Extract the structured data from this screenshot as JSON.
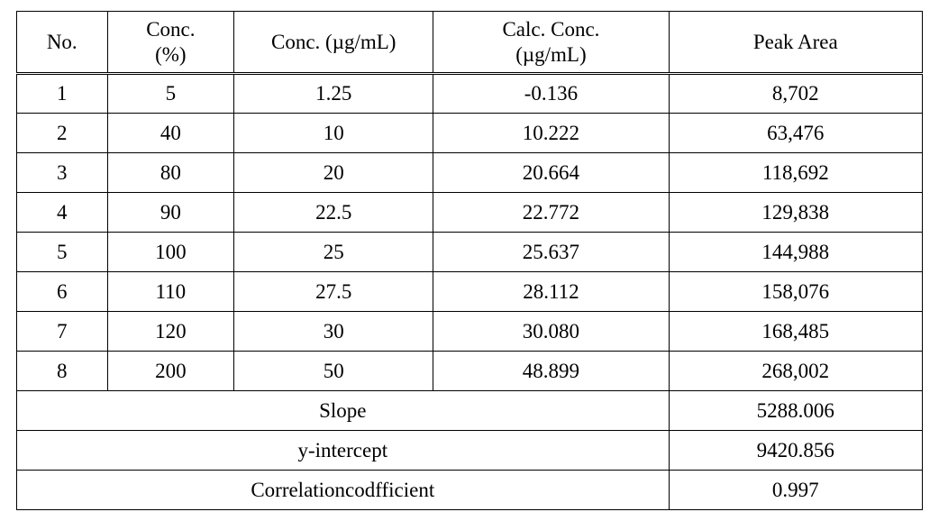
{
  "table": {
    "type": "table",
    "background_color": "#ffffff",
    "border_color": "#000000",
    "text_color": "#000000",
    "font_family": "Times New Roman, Batang, serif",
    "header_fontsize_pt": 17,
    "body_fontsize_pt": 17,
    "column_widths_pct": [
      10,
      14,
      22,
      26,
      28
    ],
    "columns": [
      "No.",
      "Conc.\n(%)",
      "Conc. (µg/mL)",
      "Calc. Conc.\n(µg/mL)",
      "Peak Area"
    ],
    "rows": [
      [
        "1",
        "5",
        "1.25",
        "-0.136",
        "8,702"
      ],
      [
        "2",
        "40",
        "10",
        "10.222",
        "63,476"
      ],
      [
        "3",
        "80",
        "20",
        "20.664",
        "118,692"
      ],
      [
        "4",
        "90",
        "22.5",
        "22.772",
        "129,838"
      ],
      [
        "5",
        "100",
        "25",
        "25.637",
        "144,988"
      ],
      [
        "6",
        "110",
        "27.5",
        "28.112",
        "158,076"
      ],
      [
        "7",
        "120",
        "30",
        "30.080",
        "168,485"
      ],
      [
        "8",
        "200",
        "50",
        "48.899",
        "268,002"
      ]
    ],
    "summary": [
      {
        "label": "Slope",
        "value": "5288.006"
      },
      {
        "label": "y-intercept",
        "value": "9420.856"
      },
      {
        "label": "Correlationcodfficient",
        "value": "0.997"
      }
    ]
  }
}
